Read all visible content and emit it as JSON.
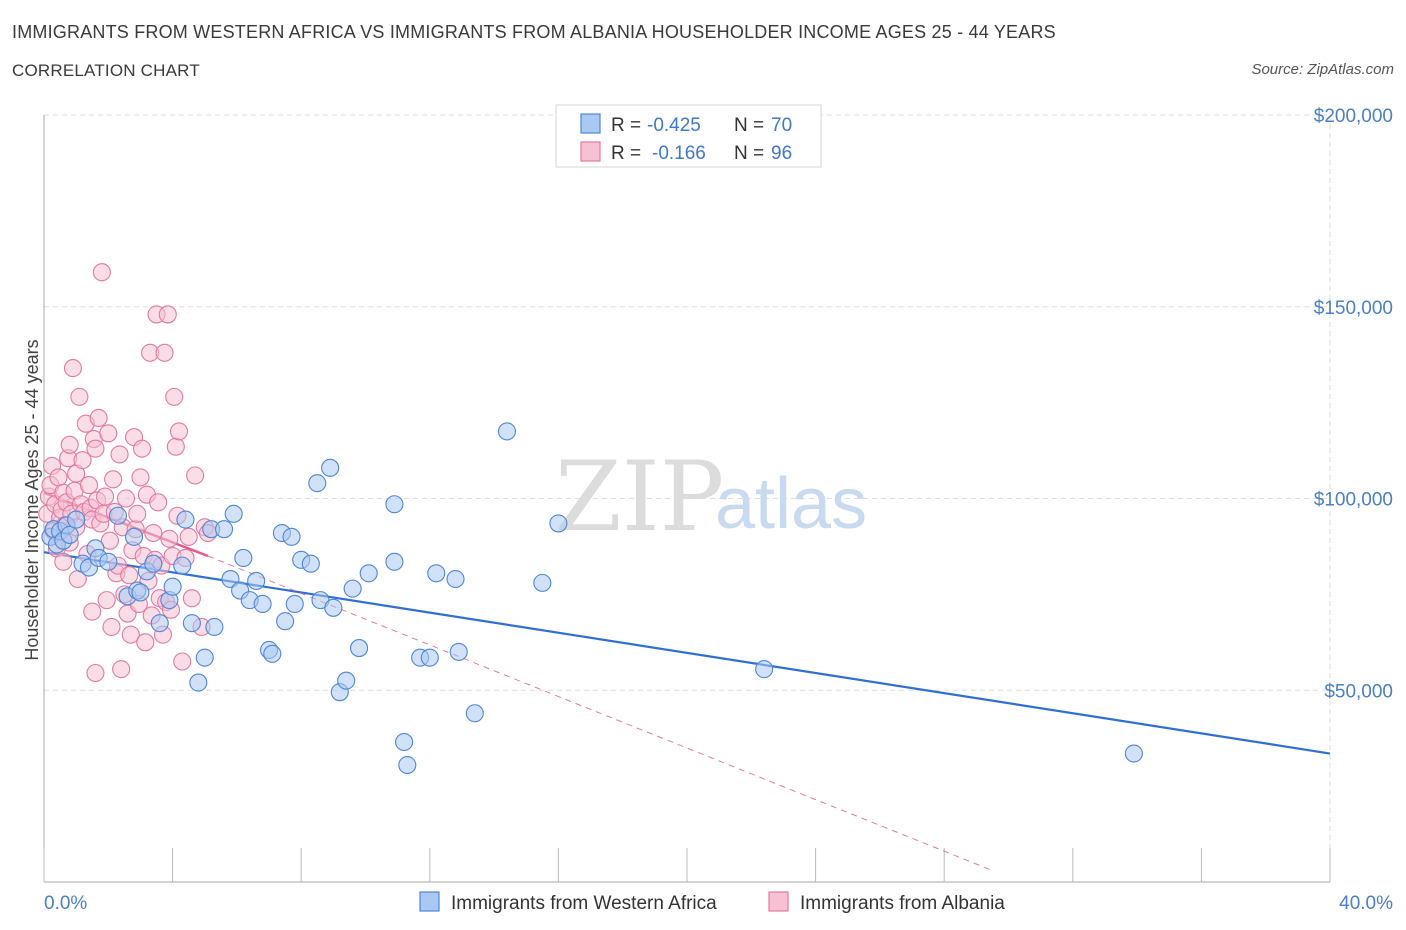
{
  "header": {
    "title": "IMMIGRANTS FROM WESTERN AFRICA VS IMMIGRANTS FROM ALBANIA HOUSEHOLDER INCOME AGES 25 - 44 YEARS",
    "subtitle": "CORRELATION CHART",
    "source": "Source: ZipAtlas.com"
  },
  "watermark": {
    "zip": "ZIP",
    "atlas": "atlas"
  },
  "legend_box": {
    "rows": [
      {
        "r_label": "R =",
        "r_value": "-0.425",
        "n_label": "N =",
        "n_value": "70",
        "color": "#7aaef0"
      },
      {
        "r_label": "R =",
        "r_value": "-0.166",
        "n_label": "N =",
        "n_value": "96",
        "color": "#f4a6c0"
      }
    ]
  },
  "colors": {
    "blue_fill": "#a9c8f2",
    "blue_stroke": "#4f86d8",
    "blue_line": "#2f6fd1",
    "pink_fill": "#f7c1d3",
    "pink_stroke": "#e27aa0",
    "pink_line": "#e05a8a",
    "grid": "#dddddd",
    "tick_label": "#4a7fc9"
  },
  "chart_data": {
    "type": "scatter",
    "title": "IMMIGRANTS FROM WESTERN AFRICA VS IMMIGRANTS FROM ALBANIA HOUSEHOLDER INCOME AGES 25 - 44 YEARS",
    "xlabel": "",
    "ylabel": "Householder Income Ages 25 - 44 years",
    "xlim": [
      0,
      40
    ],
    "ylim": [
      0,
      200000
    ],
    "x_tick_labels": [
      "0.0%",
      "40.0%"
    ],
    "y_ticks": [
      50000,
      100000,
      150000,
      200000
    ],
    "y_tick_labels": [
      "$50,000",
      "$100,000",
      "$150,000",
      "$200,000"
    ],
    "grid": true,
    "legend_position": "bottom",
    "series": [
      {
        "name": "Immigrants from Western Africa",
        "color": "#7aaef0",
        "r": -0.425,
        "n": 70,
        "trend": {
          "x": [
            0,
            40
          ],
          "y": [
            86000,
            33500
          ]
        },
        "points": [
          [
            0.2,
            90000
          ],
          [
            0.3,
            92000
          ],
          [
            0.4,
            88000
          ],
          [
            0.5,
            91500
          ],
          [
            0.6,
            89000
          ],
          [
            0.7,
            93000
          ],
          [
            0.8,
            90500
          ],
          [
            1.0,
            94500
          ],
          [
            1.2,
            83000
          ],
          [
            1.4,
            82000
          ],
          [
            1.6,
            87000
          ],
          [
            1.7,
            84500
          ],
          [
            2.0,
            83500
          ],
          [
            2.3,
            95500
          ],
          [
            2.6,
            74500
          ],
          [
            2.8,
            90000
          ],
          [
            2.9,
            76000
          ],
          [
            3.0,
            75500
          ],
          [
            3.2,
            81000
          ],
          [
            3.4,
            83000
          ],
          [
            3.6,
            67500
          ],
          [
            3.9,
            73500
          ],
          [
            4.0,
            77000
          ],
          [
            4.3,
            82500
          ],
          [
            4.4,
            94500
          ],
          [
            4.6,
            67500
          ],
          [
            4.8,
            52000
          ],
          [
            5.0,
            58500
          ],
          [
            5.2,
            92000
          ],
          [
            5.3,
            66500
          ],
          [
            5.6,
            92000
          ],
          [
            5.8,
            79000
          ],
          [
            5.9,
            96000
          ],
          [
            6.1,
            76000
          ],
          [
            6.2,
            84500
          ],
          [
            6.4,
            73500
          ],
          [
            6.6,
            78500
          ],
          [
            6.8,
            72500
          ],
          [
            7.0,
            60500
          ],
          [
            7.1,
            59500
          ],
          [
            7.4,
            91000
          ],
          [
            7.5,
            68000
          ],
          [
            7.7,
            90000
          ],
          [
            7.8,
            72500
          ],
          [
            8.0,
            84000
          ],
          [
            8.3,
            83000
          ],
          [
            8.5,
            104000
          ],
          [
            8.6,
            73500
          ],
          [
            8.9,
            108000
          ],
          [
            9.0,
            71500
          ],
          [
            9.2,
            49500
          ],
          [
            9.4,
            52500
          ],
          [
            9.6,
            76500
          ],
          [
            9.8,
            61000
          ],
          [
            10.1,
            80500
          ],
          [
            10.9,
            83500
          ],
          [
            10.9,
            98500
          ],
          [
            11.2,
            36500
          ],
          [
            11.3,
            30500
          ],
          [
            11.7,
            58500
          ],
          [
            12.0,
            58500
          ],
          [
            12.2,
            80500
          ],
          [
            12.8,
            79000
          ],
          [
            12.9,
            60000
          ],
          [
            13.4,
            44000
          ],
          [
            14.4,
            117500
          ],
          [
            15.5,
            78000
          ],
          [
            16.0,
            93500
          ],
          [
            22.4,
            55500
          ],
          [
            33.9,
            33500
          ]
        ]
      },
      {
        "name": "Immigrants from Albania",
        "color": "#f4a6c0",
        "r": -0.166,
        "n": 96,
        "trend": {
          "x": [
            0,
            5.1
          ],
          "y": [
            101500,
            85000
          ]
        },
        "trend_dashed": {
          "x": [
            5.1,
            29.5
          ],
          "y": [
            85000,
            3000
          ]
        },
        "points": [
          [
            0.1,
            96000
          ],
          [
            0.15,
            100500
          ],
          [
            0.2,
            103500
          ],
          [
            0.25,
            108500
          ],
          [
            0.3,
            91500
          ],
          [
            0.35,
            98500
          ],
          [
            0.4,
            87000
          ],
          [
            0.45,
            105500
          ],
          [
            0.5,
            95000
          ],
          [
            0.55,
            97000
          ],
          [
            0.6,
            83500
          ],
          [
            0.6,
            101500
          ],
          [
            0.65,
            93000
          ],
          [
            0.7,
            99000
          ],
          [
            0.75,
            110500
          ],
          [
            0.8,
            114000
          ],
          [
            0.8,
            88500
          ],
          [
            0.85,
            96000
          ],
          [
            0.9,
            134000
          ],
          [
            0.95,
            102000
          ],
          [
            1.0,
            106500
          ],
          [
            1.0,
            92500
          ],
          [
            1.05,
            79000
          ],
          [
            1.1,
            126500
          ],
          [
            1.15,
            98500
          ],
          [
            1.2,
            110000
          ],
          [
            1.25,
            96500
          ],
          [
            1.3,
            119500
          ],
          [
            1.35,
            85500
          ],
          [
            1.4,
            103500
          ],
          [
            1.45,
            97500
          ],
          [
            1.5,
            94500
          ],
          [
            1.5,
            70500
          ],
          [
            1.55,
            115500
          ],
          [
            1.6,
            113000
          ],
          [
            1.6,
            54500
          ],
          [
            1.65,
            99500
          ],
          [
            1.7,
            121000
          ],
          [
            1.75,
            93500
          ],
          [
            1.8,
            159000
          ],
          [
            1.85,
            96000
          ],
          [
            1.9,
            100500
          ],
          [
            1.95,
            73500
          ],
          [
            2.0,
            117000
          ],
          [
            2.05,
            89000
          ],
          [
            2.1,
            66500
          ],
          [
            2.15,
            105000
          ],
          [
            2.2,
            96500
          ],
          [
            2.25,
            80500
          ],
          [
            2.3,
            82500
          ],
          [
            2.35,
            111500
          ],
          [
            2.4,
            55500
          ],
          [
            2.45,
            92500
          ],
          [
            2.5,
            75000
          ],
          [
            2.55,
            100000
          ],
          [
            2.6,
            70000
          ],
          [
            2.65,
            80000
          ],
          [
            2.7,
            64500
          ],
          [
            2.75,
            86500
          ],
          [
            2.8,
            116000
          ],
          [
            2.85,
            92000
          ],
          [
            2.9,
            96000
          ],
          [
            2.95,
            72500
          ],
          [
            3.0,
            105500
          ],
          [
            3.05,
            113000
          ],
          [
            3.1,
            85000
          ],
          [
            3.15,
            62500
          ],
          [
            3.2,
            101000
          ],
          [
            3.25,
            78500
          ],
          [
            3.3,
            138000
          ],
          [
            3.35,
            69500
          ],
          [
            3.4,
            91000
          ],
          [
            3.45,
            84000
          ],
          [
            3.5,
            148000
          ],
          [
            3.55,
            99000
          ],
          [
            3.6,
            74000
          ],
          [
            3.65,
            82500
          ],
          [
            3.7,
            64500
          ],
          [
            3.75,
            138000
          ],
          [
            3.8,
            73000
          ],
          [
            3.85,
            148000
          ],
          [
            3.9,
            89500
          ],
          [
            3.95,
            71000
          ],
          [
            4.0,
            85000
          ],
          [
            4.05,
            126500
          ],
          [
            4.1,
            113500
          ],
          [
            4.15,
            95500
          ],
          [
            4.2,
            117500
          ],
          [
            4.3,
            57500
          ],
          [
            4.4,
            84500
          ],
          [
            4.5,
            90000
          ],
          [
            4.6,
            74000
          ],
          [
            4.7,
            106000
          ],
          [
            4.9,
            66500
          ],
          [
            5.0,
            92500
          ],
          [
            5.1,
            91000
          ]
        ]
      }
    ]
  }
}
